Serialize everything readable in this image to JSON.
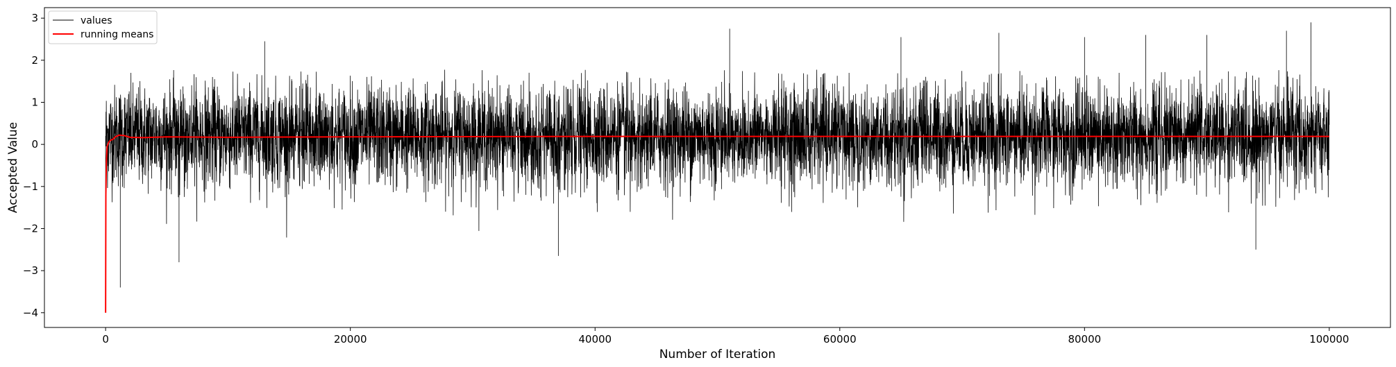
{
  "chart_data": {
    "type": "line",
    "title": "",
    "xlabel": "Number of Iteration",
    "ylabel": "Accepted Value",
    "xlim": [
      -5000,
      105000
    ],
    "ylim": [
      -4.35,
      3.25
    ],
    "xticks": [
      0,
      20000,
      40000,
      60000,
      80000,
      100000
    ],
    "xtick_labels": [
      "0",
      "20000",
      "40000",
      "60000",
      "80000",
      "100000"
    ],
    "yticks": [
      3,
      2,
      1,
      0,
      -1,
      -2,
      -3,
      -4
    ],
    "ytick_labels": [
      "3",
      "2",
      "1",
      "0",
      "−1",
      "−2",
      "−3",
      "−4"
    ],
    "grid": false,
    "legend_position": "upper-left",
    "n_iterations": 100000,
    "series": [
      {
        "name": "values",
        "color": "#000000",
        "style": "thin noisy trace",
        "center": 0.2,
        "spread": 0.6,
        "typical_min": -2.3,
        "typical_max": 1.8,
        "spikes": [
          {
            "x": 0,
            "y": -4.0
          },
          {
            "x": 1200,
            "y": -3.4
          },
          {
            "x": 6000,
            "y": -2.8
          },
          {
            "x": 13000,
            "y": 2.45
          },
          {
            "x": 37000,
            "y": -2.65
          },
          {
            "x": 51000,
            "y": 2.75
          },
          {
            "x": 65000,
            "y": 2.55
          },
          {
            "x": 73000,
            "y": 2.65
          },
          {
            "x": 80000,
            "y": 2.55
          },
          {
            "x": 85000,
            "y": 2.6
          },
          {
            "x": 90000,
            "y": 2.6
          },
          {
            "x": 94000,
            "y": -2.5
          },
          {
            "x": 96500,
            "y": 2.7
          },
          {
            "x": 98500,
            "y": 2.9
          }
        ]
      },
      {
        "name": "running means",
        "color": "#ff0000",
        "x": [
          0,
          20,
          60,
          120,
          250,
          400,
          600,
          800,
          1100,
          1500,
          2000,
          3000,
          5000,
          10000,
          20000,
          40000,
          60000,
          80000,
          100000
        ],
        "y": [
          -4.0,
          -1.2,
          -0.45,
          -0.05,
          0.05,
          0.1,
          0.12,
          0.18,
          0.22,
          0.21,
          0.17,
          0.16,
          0.18,
          0.17,
          0.18,
          0.19,
          0.19,
          0.19,
          0.19
        ]
      }
    ],
    "legend": [
      "values",
      "running means"
    ]
  }
}
